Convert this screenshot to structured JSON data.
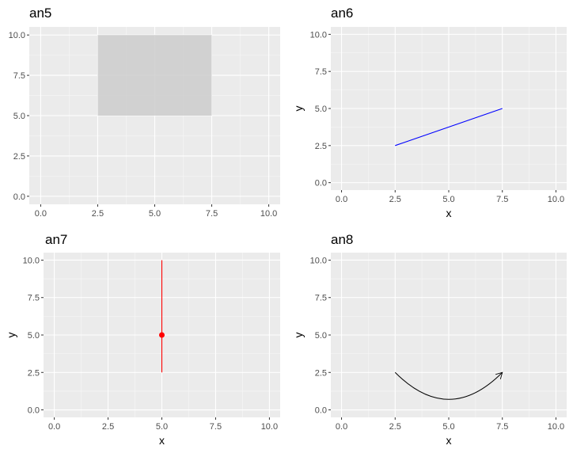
{
  "chart_data": [
    {
      "type": "rect-annotation",
      "title": "an5",
      "xlabel": "",
      "ylabel": "",
      "xlim": [
        -0.5,
        10.5
      ],
      "ylim": [
        -0.5,
        10.5
      ],
      "xticks": [
        "0.0",
        "2.5",
        "5.0",
        "7.5",
        "10.0"
      ],
      "yticks": [
        "0.0",
        "2.5",
        "5.0",
        "7.5",
        "10.0"
      ],
      "grid": true,
      "annotation": {
        "xmin": 2.5,
        "xmax": 7.5,
        "ymin": 5,
        "ymax": 10,
        "fill": "#cccccc"
      }
    },
    {
      "type": "segment-annotation",
      "title": "an6",
      "xlabel": "x",
      "ylabel": "y",
      "xlim": [
        -0.5,
        10.5
      ],
      "ylim": [
        -0.5,
        10.5
      ],
      "xticks": [
        "0.0",
        "2.5",
        "5.0",
        "7.5",
        "10.0"
      ],
      "yticks": [
        "0.0",
        "2.5",
        "5.0",
        "7.5",
        "10.0"
      ],
      "grid": true,
      "annotation": {
        "x": 2.5,
        "y": 2.5,
        "xend": 7.5,
        "yend": 5,
        "color": "#0000ff"
      }
    },
    {
      "type": "pointrange-annotation",
      "title": "an7",
      "xlabel": "x",
      "ylabel": "y",
      "xlim": [
        -0.5,
        10.5
      ],
      "ylim": [
        -0.5,
        10.5
      ],
      "xticks": [
        "0.0",
        "2.5",
        "5.0",
        "7.5",
        "10.0"
      ],
      "yticks": [
        "0.0",
        "2.5",
        "5.0",
        "7.5",
        "10.0"
      ],
      "grid": true,
      "annotation": {
        "x": 5,
        "y": 5,
        "ymin": 2.5,
        "ymax": 10,
        "color": "#ff0000"
      }
    },
    {
      "type": "curve-annotation",
      "title": "an8",
      "xlabel": "x",
      "ylabel": "y",
      "xlim": [
        -0.5,
        10.5
      ],
      "ylim": [
        -0.5,
        10.5
      ],
      "xticks": [
        "0.0",
        "2.5",
        "5.0",
        "7.5",
        "10.0"
      ],
      "yticks": [
        "0.0",
        "2.5",
        "5.0",
        "7.5",
        "10.0"
      ],
      "grid": true,
      "annotation": {
        "x": 2.5,
        "y": 2.5,
        "xend": 7.5,
        "yend": 2.5,
        "arrow": true,
        "color": "#000000"
      }
    }
  ]
}
